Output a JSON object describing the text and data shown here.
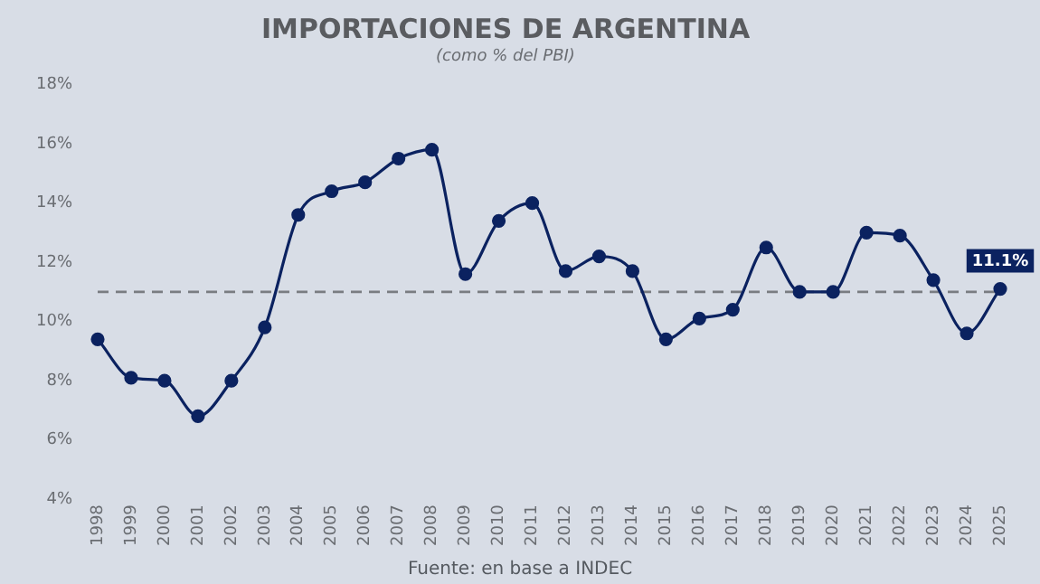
{
  "chart_data": {
    "type": "line",
    "title": "IMPORTACIONES DE ARGENTINA",
    "subtitle": "(como % del PBI)",
    "categories": [
      "1998",
      "1999",
      "2000",
      "2001",
      "2002",
      "2003",
      "2004",
      "2005",
      "2006",
      "2007",
      "2008",
      "2009",
      "2010",
      "2011",
      "2012",
      "2013",
      "2014",
      "2015",
      "2016",
      "2017",
      "2018",
      "2019",
      "2020",
      "2021",
      "2022",
      "2023",
      "2024",
      "2025"
    ],
    "series": [
      {
        "color": "#0b2260",
        "values": [
          9.4,
          8.1,
          8.0,
          6.8,
          8.0,
          9.8,
          13.6,
          14.4,
          14.7,
          15.5,
          15.8,
          11.6,
          13.4,
          14.0,
          11.7,
          12.2,
          11.7,
          9.4,
          10.1,
          10.4,
          12.5,
          11.0,
          11.0,
          13.0,
          12.9,
          11.4,
          9.6,
          11.1
        ],
        "value_labels": [
          null,
          null,
          null,
          null,
          null,
          null,
          null,
          null,
          null,
          null,
          null,
          null,
          null,
          null,
          null,
          null,
          null,
          null,
          null,
          null,
          null,
          null,
          null,
          null,
          null,
          null,
          null,
          "11.1%"
        ]
      }
    ],
    "ylim": [
      4,
      18
    ],
    "yticks": [
      {
        "value": 4,
        "label": "4%"
      },
      {
        "value": 6,
        "label": "6%"
      },
      {
        "value": 8,
        "label": "8%"
      },
      {
        "value": 10,
        "label": "10%"
      },
      {
        "value": 12,
        "label": "12%"
      },
      {
        "value": 14,
        "label": "14%"
      },
      {
        "value": 16,
        "label": "16%"
      },
      {
        "value": 18,
        "label": "18%"
      }
    ],
    "ref_lines": [
      {
        "axis": "y",
        "value": 11.0,
        "color": "#7a7d82",
        "line_style": "dashed"
      }
    ],
    "marker": "circle",
    "line_style": "solid",
    "grid": false,
    "legend": false,
    "annotations": [
      "Fuente: en base a INDEC"
    ]
  }
}
